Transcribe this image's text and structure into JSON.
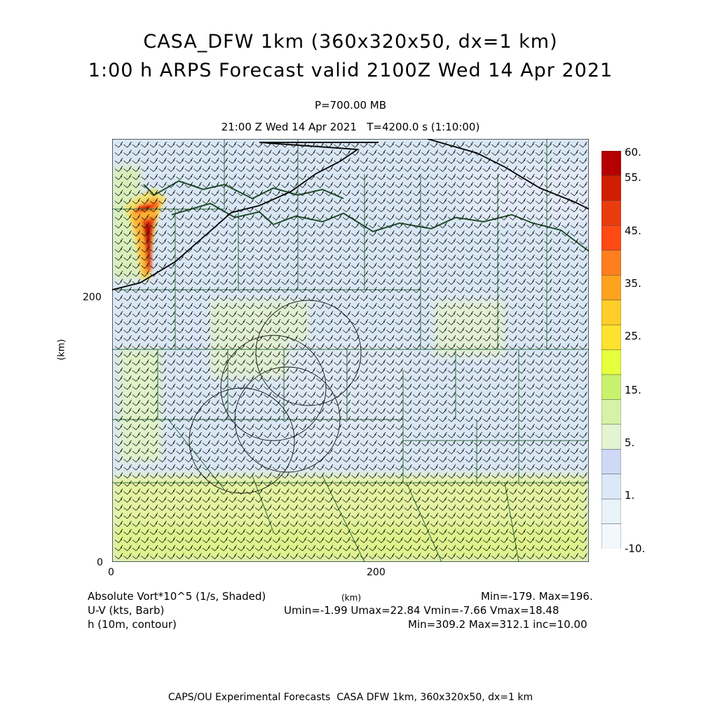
{
  "header": {
    "title_line1": "CASA_DFW 1km (360x320x50, dx=1 km)",
    "title_line2": "1:00 h ARPS Forecast valid 2100Z Wed 14 Apr 2021",
    "level": "P=700.00 MB",
    "valid_line": "21:00 Z Wed 14 Apr 2021   T=4200.0 s (1:10:00)"
  },
  "axes": {
    "x_ticks": [
      "0",
      "200"
    ],
    "y_ticks": [
      "200",
      "0"
    ],
    "x_unit": "(km)",
    "y_unit": "(km)"
  },
  "colorbar": {
    "labels": [
      "60.",
      "55.",
      "45.",
      "35.",
      "25.",
      "15.",
      "5.",
      "1.",
      "-10."
    ],
    "colors": [
      "#b40000",
      "#d21e00",
      "#e83c0f",
      "#ff4a14",
      "#ff7e1e",
      "#ffa31e",
      "#ffcd28",
      "#ffe22e",
      "#e6ff3c",
      "#c8f26e",
      "#d6f2a8",
      "#e2f5d0",
      "#cfd8f4",
      "#dbe8f7",
      "#e8f2f9",
      "#f2f8fb"
    ]
  },
  "legend": {
    "field1": "Absolute Vort*10^5 (1/s, Shaded)",
    "field1_stats": "Min=-179. Max=196.",
    "field2": "U-V (kts, Barb)",
    "field2_stats": "Umin=-1.99 Umax=22.84 Vmin=-7.66 Vmax=18.48",
    "field3": "h (10m, contour)",
    "field3_stats": "Min=309.2 Max=312.1 inc=10.00",
    "x_unit": "(km)"
  },
  "footer": "CAPS/OU Experimental Forecasts  CASA DFW 1km, 360x320x50, dx=1 km"
}
